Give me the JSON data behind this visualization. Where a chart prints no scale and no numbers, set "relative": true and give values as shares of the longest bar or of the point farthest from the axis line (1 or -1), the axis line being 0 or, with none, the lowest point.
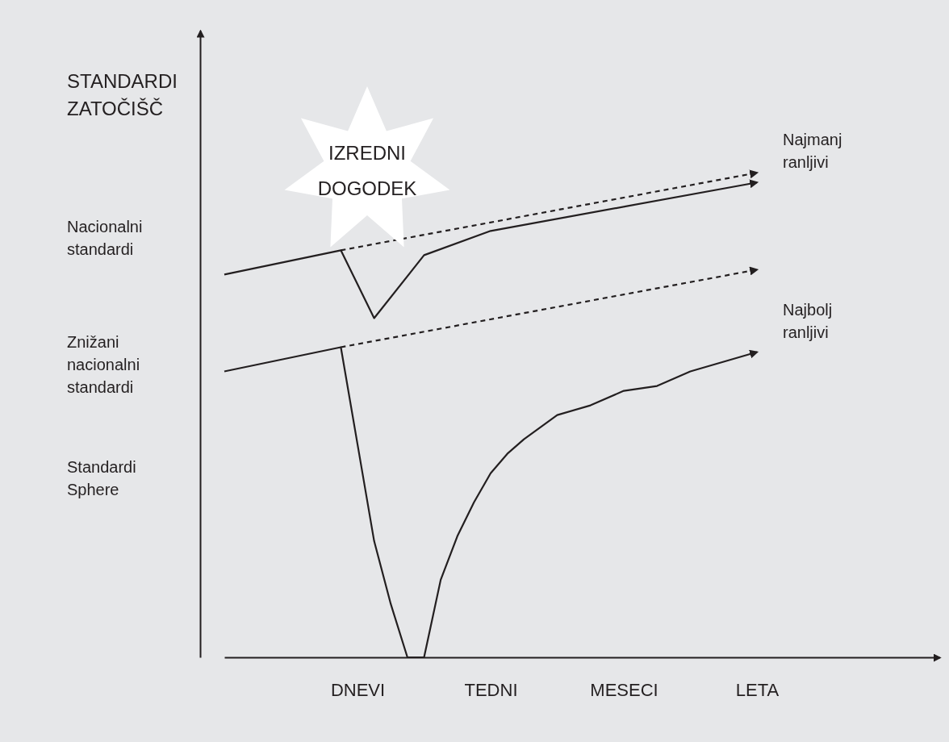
{
  "chart_data": {
    "type": "line",
    "relative": true,
    "ylabel": "STANDARDI ZATOČIŠČ",
    "categories": [
      null,
      null,
      null,
      null,
      null,
      null,
      null,
      null,
      "DNEVI",
      null,
      null,
      null,
      null,
      null,
      null,
      null,
      "TEDNI",
      null,
      null,
      null,
      null,
      null,
      null,
      null,
      "MESECI",
      null,
      null,
      null,
      null,
      null,
      null,
      null,
      "LETA",
      null,
      null,
      null,
      null,
      null,
      null,
      null,
      null,
      null,
      null
    ],
    "series": [
      {
        "name": "Najmanj ranljivi",
        "color": "#231f20",
        "line_style": "solid",
        "values": [
          0.79,
          null,
          null,
          null,
          null,
          null,
          null,
          0.84,
          null,
          0.7,
          null,
          null,
          0.83,
          null,
          null,
          null,
          0.88,
          null,
          null,
          null,
          null,
          null,
          null,
          null,
          null,
          null,
          null,
          null,
          null,
          null,
          null,
          null,
          0.98,
          null,
          null,
          null,
          null,
          null,
          null,
          null,
          null,
          null,
          null
        ]
      },
      {
        "color": "#231f20",
        "line_style": "dashed",
        "values": [
          null,
          null,
          null,
          null,
          null,
          null,
          null,
          0.84,
          null,
          null,
          null,
          null,
          null,
          null,
          null,
          null,
          null,
          null,
          null,
          null,
          null,
          null,
          null,
          null,
          null,
          null,
          null,
          null,
          null,
          null,
          null,
          null,
          1.0,
          null,
          null,
          null,
          null,
          null,
          null,
          null,
          null,
          null,
          null
        ]
      },
      {
        "color": "#231f20",
        "line_style": "dashed",
        "values": [
          null,
          null,
          null,
          null,
          null,
          null,
          null,
          0.64,
          null,
          null,
          null,
          null,
          null,
          null,
          null,
          null,
          null,
          null,
          null,
          null,
          null,
          null,
          null,
          null,
          null,
          null,
          null,
          null,
          null,
          null,
          null,
          null,
          0.8,
          null,
          null,
          null,
          null,
          null,
          null,
          null,
          null,
          null,
          null
        ]
      },
      {
        "name": "Najbolj ranljivi",
        "color": "#231f20",
        "line_style": "solid",
        "values": [
          0.59,
          null,
          null,
          null,
          null,
          null,
          null,
          0.64,
          0.44,
          0.24,
          0.11,
          0.0,
          0.0,
          0.16,
          0.25,
          0.32,
          0.38,
          0.42,
          0.45,
          null,
          0.5,
          null,
          0.52,
          null,
          0.55,
          null,
          0.56,
          null,
          0.59,
          null,
          0.61,
          null,
          0.63,
          null,
          null,
          null,
          null,
          null,
          null,
          null,
          null,
          null,
          null
        ]
      }
    ],
    "annotations": [
      "IZREDNI DOGODEK",
      "Nacionalni standardi",
      "Znižani nacionalni standardi",
      "Standardi Sphere"
    ],
    "marker": "none",
    "grid": false
  }
}
